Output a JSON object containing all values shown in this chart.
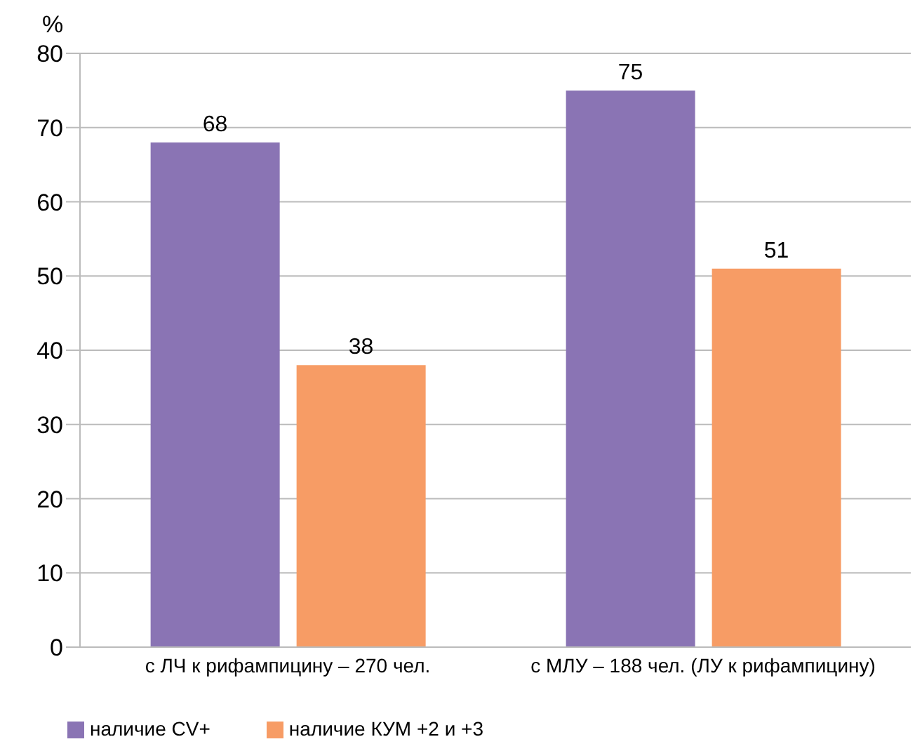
{
  "chart_data": {
    "type": "bar",
    "ylabel": "%",
    "categories": [
      "с ЛЧ к рифампицину – 270 чел.",
      "с МЛУ – 188 чел. (ЛУ к рифампицину)"
    ],
    "series": [
      {
        "name": "наличие СV+",
        "color": "#8a74b4",
        "values": [
          68,
          75
        ]
      },
      {
        "name": "наличие КУМ +2 и +3",
        "color": "#f79c65",
        "values": [
          38,
          51
        ]
      }
    ],
    "ylim": [
      0,
      80
    ],
    "yticks": [
      0,
      10,
      20,
      30,
      40,
      50,
      60,
      70,
      80
    ],
    "grid": "y",
    "data_labels": true,
    "legend": "bottom left"
  }
}
